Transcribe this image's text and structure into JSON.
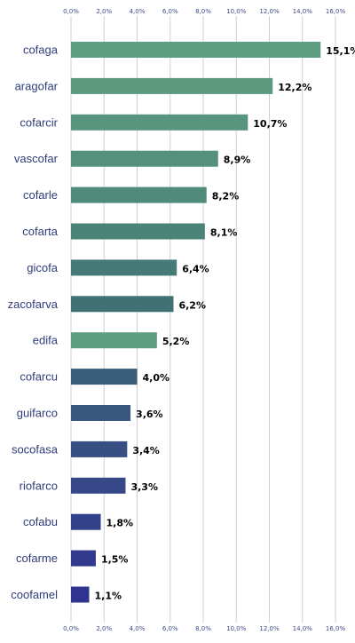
{
  "chart_data": {
    "type": "bar",
    "orientation": "horizontal",
    "categories": [
      "cofaga",
      "aragofar",
      "cofarcir",
      "vascofar",
      "cofarle",
      "cofarta",
      "gicofa",
      "zacofarva",
      "edifa",
      "cofarcu",
      "guifarco",
      "socofasa",
      "riofarco",
      "cofabu",
      "cofarme",
      "coofamel"
    ],
    "values": [
      15.1,
      12.2,
      10.7,
      8.9,
      8.2,
      8.1,
      6.4,
      6.2,
      5.2,
      4.0,
      3.6,
      3.4,
      3.3,
      1.8,
      1.5,
      1.1
    ],
    "value_labels": [
      "15,1%",
      "12,2%",
      "10,7%",
      "8,9%",
      "8,2%",
      "8,1%",
      "6,4%",
      "6,2%",
      "5,2%",
      "4,0%",
      "3,6%",
      "3,4%",
      "3,3%",
      "1,8%",
      "1,5%",
      "1,1%"
    ],
    "colors": [
      "#5e9e80",
      "#5b9a7f",
      "#57957e",
      "#54907c",
      "#4f8a7a",
      "#4a8377",
      "#457a76",
      "#407175",
      "#5e9e80",
      "#3a5d7a",
      "#3a5780",
      "#384f84",
      "#364888",
      "#33418b",
      "#313a8d",
      "#2f348f"
    ],
    "xlim": [
      0,
      16
    ],
    "xticks": [
      "0,0%",
      "2,0%",
      "4,0%",
      "6,0%",
      "8,0%",
      "10,0%",
      "12,0%",
      "14,0%",
      "16,0%"
    ],
    "grid": true,
    "title": "",
    "xlabel": "",
    "ylabel": ""
  }
}
